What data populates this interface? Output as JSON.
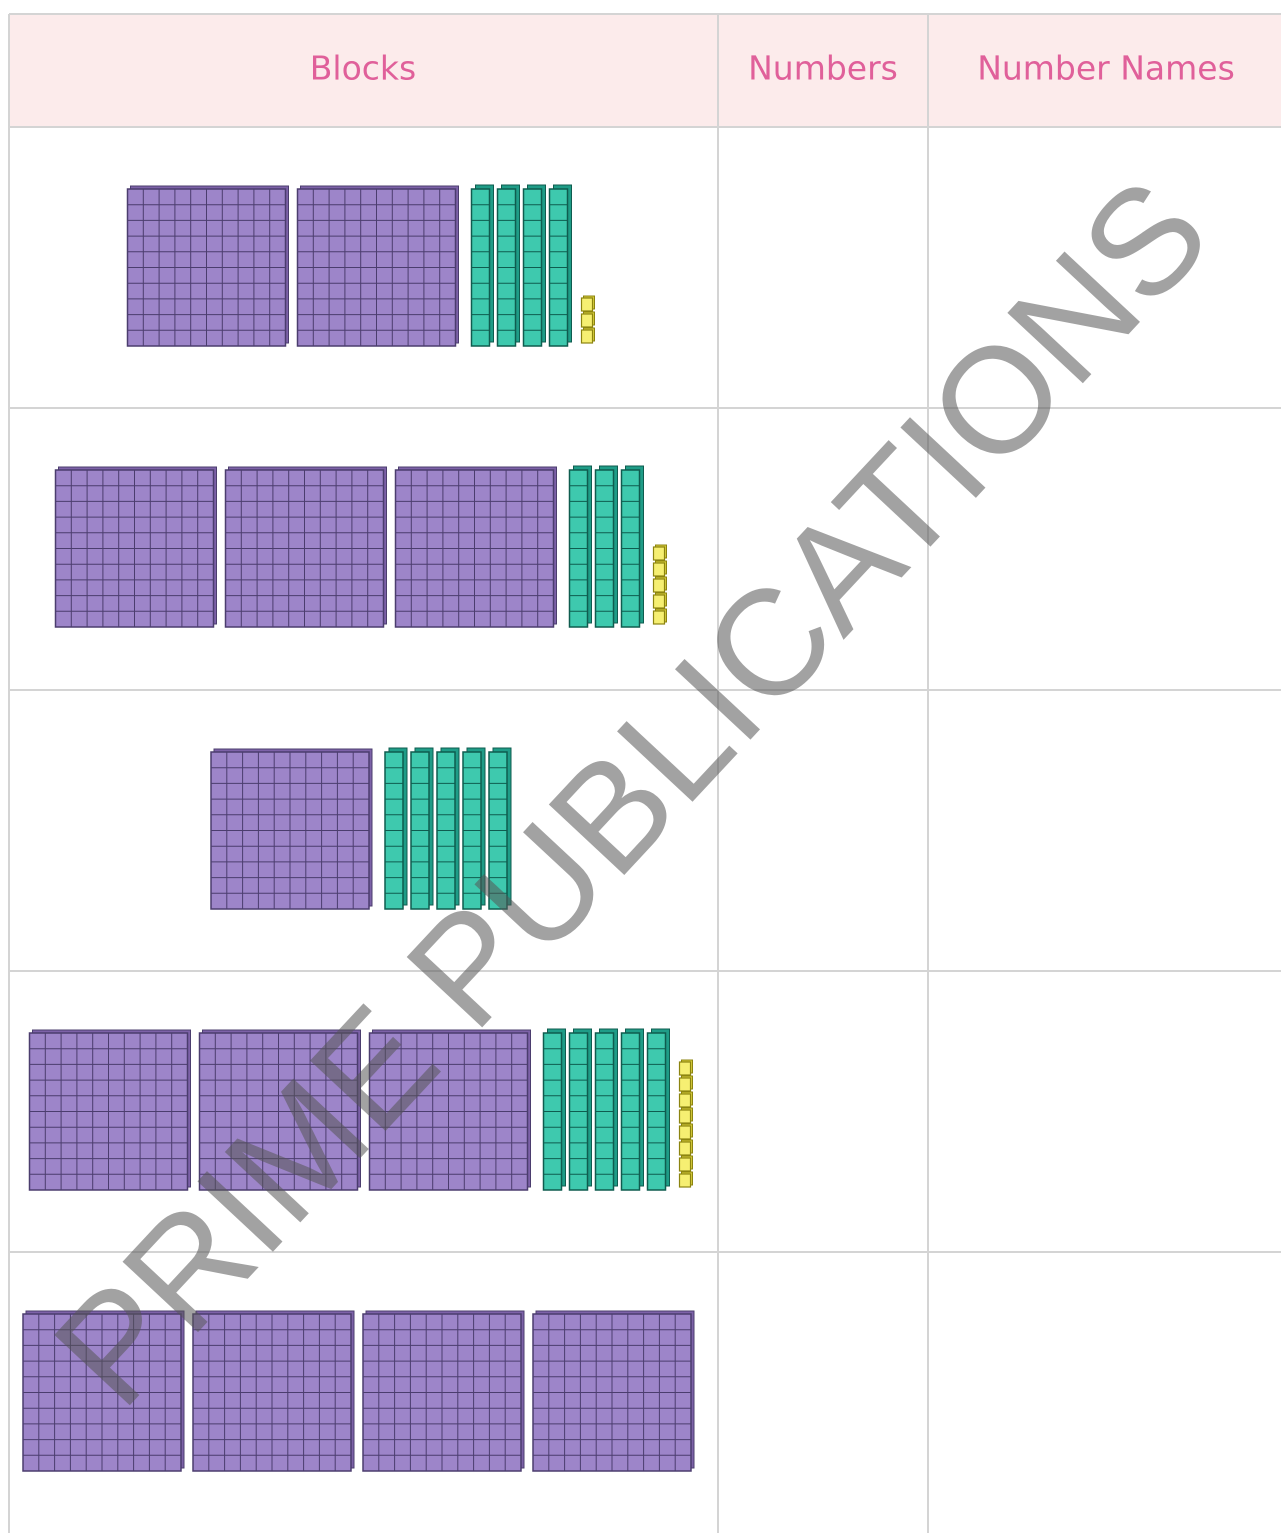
{
  "header": {
    "columns": [
      "Blocks",
      "Numbers",
      "Number Names"
    ]
  },
  "rows": [
    {
      "hundreds": 2,
      "tens": 4,
      "ones": 3
    },
    {
      "hundreds": 3,
      "tens": 3,
      "ones": 5
    },
    {
      "hundreds": 1,
      "tens": 5,
      "ones": 0
    },
    {
      "hundreds": 3,
      "tens": 5,
      "ones": 8
    },
    {
      "hundreds": 4,
      "tens": 0,
      "ones": 0
    }
  ],
  "watermark": "PRIME PUBLICATIONS"
}
